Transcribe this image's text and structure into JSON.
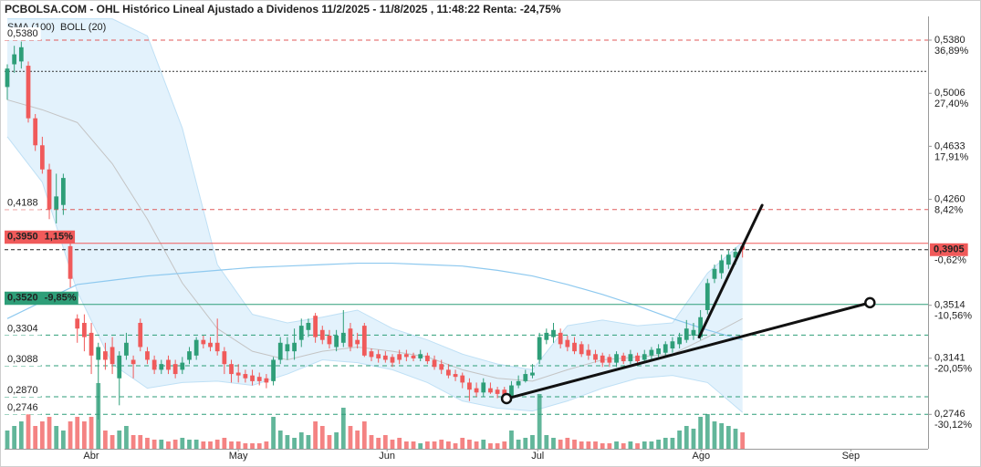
{
  "chart_data": {
    "type": "candlestick",
    "title": "PCBOLSA.COM - OHL Histórico Lineal Ajustado a Dividenos 11/2/2025 - 11/8/2025 , 11:48:22 Renta: -24,75%",
    "up_color": "#2e9e78",
    "down_color": "#f05a5a",
    "xlim": [
      -0.39,
      131.5
    ],
    "ylim": [
      0.2504,
      0.5547
    ],
    "volume_lim": [
      0,
      130
    ],
    "xticks": [
      {
        "value": 11.99,
        "label": "Abr"
      },
      {
        "value": 32.99,
        "label": "May"
      },
      {
        "value": 54.24,
        "label": "Jun"
      },
      {
        "value": 75.75,
        "label": "Jul"
      },
      {
        "value": 99.09,
        "label": "Ago"
      },
      {
        "value": 120.47,
        "label": "Sep"
      }
    ],
    "yticks": [
      {
        "value": 0.538,
        "label": "0,5380",
        "change": {
          "value": 36.89,
          "label": "36,89%"
        }
      },
      {
        "value": 0.5006,
        "label": "0,5006",
        "change": {
          "value": 27.4,
          "label": "27,40%"
        }
      },
      {
        "value": 0.4633,
        "label": "0,4633",
        "change": {
          "value": 17.91,
          "label": "17,91%"
        }
      },
      {
        "value": 0.426,
        "label": "0,4260",
        "change": {
          "value": 8.42,
          "label": "8,42%"
        }
      },
      {
        "value": 0.3514,
        "label": "0,3514",
        "change": {
          "value": -10.56,
          "label": "-10,56%"
        }
      },
      {
        "value": 0.3141,
        "label": "0,3141",
        "change": {
          "value": -20.05,
          "label": "-20,05%"
        }
      },
      {
        "value": 0.2746,
        "label": "0,2746",
        "change": {
          "value": -30.12,
          "label": "-30,12%"
        }
      }
    ],
    "last_price": {
      "value": 0.3905,
      "label": "0,3905",
      "change": {
        "value": -0.62,
        "label": "-0,62%"
      },
      "color": "#f05a5a"
    },
    "levels": [
      {
        "value": 0.538,
        "label": "0,5380",
        "color": "#e05a5a",
        "style": "dashed"
      },
      {
        "value": 0.516,
        "color": "#333333",
        "style": "dotted"
      },
      {
        "value": 0.4188,
        "label": "0,4188",
        "color": "#e05a5a",
        "style": "dashed"
      },
      {
        "value": 0.395,
        "label": "0,3950",
        "change": {
          "value": 1.15,
          "label": "1,15%"
        },
        "color": "#f05a5a",
        "style": "solid",
        "boxed": true
      },
      {
        "value": 0.352,
        "label": "0,3520",
        "change": {
          "value": -9.85,
          "label": "-9,85%"
        },
        "color": "#2e9e78",
        "style": "solid",
        "boxed": true
      },
      {
        "value": 0.3304,
        "label": "0,3304",
        "color": "#2e9e78",
        "style": "dashed"
      },
      {
        "value": 0.3088,
        "label": "0,3088",
        "color": "#2e9e78",
        "style": "dashed"
      },
      {
        "value": 0.287,
        "label": "0,2870",
        "color": "#2e9e78",
        "style": "dashed"
      },
      {
        "value": 0.2746,
        "label": "0,2746",
        "color": "#2e9e78",
        "style": "dashed"
      }
    ],
    "open": [
      0.505,
      0.521,
      0.523,
      0.52,
      0.483,
      0.464,
      0.447,
      0.419,
      0.422,
      0.393,
      0.342,
      0.339,
      0.332,
      0.313,
      0.319,
      0.322,
      0.3,
      0.316,
      0.313,
      0.339,
      0.319,
      0.313,
      0.306,
      0.313,
      0.31,
      0.306,
      0.313,
      0.316,
      0.327,
      0.325,
      0.325,
      0.319,
      0.31,
      0.304,
      0.303,
      0.302,
      0.301,
      0.3,
      0.298,
      0.313,
      0.319,
      0.319,
      0.327,
      0.334,
      0.344,
      0.334,
      0.33,
      0.322,
      0.325,
      0.335,
      0.327,
      0.337,
      0.319,
      0.317,
      0.316,
      0.315,
      0.317,
      0.317,
      0.316,
      0.314,
      0.316,
      0.313,
      0.31,
      0.306,
      0.303,
      0.302,
      0.297,
      0.293,
      0.29,
      0.293,
      0.292,
      0.292,
      0.287,
      0.295,
      0.298,
      0.302,
      0.313,
      0.327,
      0.329,
      0.332,
      0.327,
      0.325,
      0.324,
      0.32,
      0.317,
      0.316,
      0.315,
      0.311,
      0.316,
      0.312,
      0.316,
      0.313,
      0.316,
      0.317,
      0.318,
      0.321,
      0.324,
      0.327,
      0.33,
      0.329,
      0.348,
      0.37,
      0.374,
      0.38,
      0.385,
      0.393
    ],
    "high": [
      0.521,
      0.534,
      0.537,
      0.523,
      0.486,
      0.47,
      0.451,
      0.444,
      0.444,
      0.399,
      0.345,
      0.345,
      0.339,
      0.325,
      0.325,
      0.329,
      0.319,
      0.332,
      0.316,
      0.342,
      0.322,
      0.316,
      0.313,
      0.316,
      0.313,
      0.315,
      0.322,
      0.329,
      0.33,
      0.329,
      0.342,
      0.322,
      0.313,
      0.31,
      0.306,
      0.306,
      0.304,
      0.303,
      0.315,
      0.329,
      0.329,
      0.335,
      0.342,
      0.342,
      0.346,
      0.337,
      0.334,
      0.334,
      0.348,
      0.339,
      0.332,
      0.339,
      0.321,
      0.32,
      0.319,
      0.317,
      0.32,
      0.32,
      0.318,
      0.32,
      0.318,
      0.316,
      0.313,
      0.31,
      0.306,
      0.304,
      0.3,
      0.297,
      0.3,
      0.297,
      0.294,
      0.294,
      0.298,
      0.302,
      0.306,
      0.31,
      0.332,
      0.335,
      0.339,
      0.335,
      0.33,
      0.329,
      0.326,
      0.324,
      0.32,
      0.318,
      0.317,
      0.319,
      0.318,
      0.32,
      0.318,
      0.32,
      0.322,
      0.324,
      0.326,
      0.329,
      0.332,
      0.341,
      0.339,
      0.348,
      0.37,
      0.38,
      0.387,
      0.39,
      0.392,
      0.394
    ],
    "low": [
      0.496,
      0.515,
      0.518,
      0.48,
      0.46,
      0.444,
      0.412,
      0.409,
      0.415,
      0.364,
      0.325,
      0.319,
      0.303,
      0.271,
      0.306,
      0.303,
      0.281,
      0.313,
      0.3,
      0.319,
      0.31,
      0.303,
      0.303,
      0.303,
      0.3,
      0.303,
      0.31,
      0.313,
      0.321,
      0.319,
      0.316,
      0.303,
      0.297,
      0.297,
      0.297,
      0.295,
      0.295,
      0.293,
      0.295,
      0.31,
      0.313,
      0.313,
      0.322,
      0.329,
      0.325,
      0.324,
      0.321,
      0.319,
      0.322,
      0.319,
      0.321,
      0.315,
      0.312,
      0.311,
      0.311,
      0.308,
      0.31,
      0.312,
      0.312,
      0.312,
      0.31,
      0.306,
      0.303,
      0.3,
      0.298,
      0.293,
      0.284,
      0.287,
      0.287,
      0.289,
      0.286,
      0.284,
      0.284,
      0.293,
      0.297,
      0.3,
      0.31,
      0.324,
      0.325,
      0.321,
      0.319,
      0.317,
      0.315,
      0.313,
      0.311,
      0.308,
      0.308,
      0.308,
      0.31,
      0.31,
      0.31,
      0.311,
      0.313,
      0.315,
      0.316,
      0.318,
      0.321,
      0.325,
      0.327,
      0.327,
      0.345,
      0.367,
      0.37,
      0.377,
      0.38,
      0.385
    ],
    "close": [
      0.518,
      0.528,
      0.533,
      0.483,
      0.464,
      0.447,
      0.419,
      0.428,
      0.441,
      0.37,
      0.335,
      0.329,
      0.316,
      0.322,
      0.313,
      0.31,
      0.316,
      0.325,
      0.31,
      0.322,
      0.313,
      0.306,
      0.31,
      0.306,
      0.303,
      0.311,
      0.319,
      0.327,
      0.324,
      0.322,
      0.319,
      0.31,
      0.303,
      0.302,
      0.3,
      0.298,
      0.298,
      0.297,
      0.313,
      0.325,
      0.324,
      0.325,
      0.337,
      0.339,
      0.329,
      0.327,
      0.324,
      0.33,
      0.332,
      0.322,
      0.324,
      0.316,
      0.315,
      0.314,
      0.313,
      0.311,
      0.313,
      0.315,
      0.314,
      0.317,
      0.312,
      0.308,
      0.306,
      0.302,
      0.301,
      0.297,
      0.292,
      0.29,
      0.297,
      0.29,
      0.289,
      0.287,
      0.295,
      0.298,
      0.303,
      0.304,
      0.329,
      0.332,
      0.334,
      0.324,
      0.322,
      0.319,
      0.317,
      0.316,
      0.313,
      0.311,
      0.311,
      0.317,
      0.312,
      0.317,
      0.312,
      0.317,
      0.32,
      0.321,
      0.324,
      0.326,
      0.329,
      0.335,
      0.334,
      0.343,
      0.367,
      0.377,
      0.383,
      0.387,
      0.389,
      0.3905
    ],
    "volume": [
      20,
      25,
      30,
      40,
      25,
      30,
      35,
      25,
      20,
      30,
      35,
      30,
      35,
      72,
      20,
      15,
      20,
      25,
      15,
      15,
      12,
      10,
      10,
      8,
      10,
      12,
      10,
      10,
      8,
      8,
      10,
      12,
      8,
      8,
      6,
      6,
      6,
      8,
      35,
      20,
      15,
      12,
      18,
      15,
      30,
      25,
      15,
      18,
      45,
      25,
      20,
      30,
      15,
      12,
      15,
      10,
      12,
      8,
      8,
      6,
      8,
      8,
      10,
      8,
      6,
      12,
      10,
      8,
      10,
      6,
      6,
      8,
      20,
      10,
      12,
      15,
      60,
      15,
      12,
      10,
      12,
      10,
      8,
      8,
      8,
      6,
      6,
      8,
      6,
      8,
      6,
      8,
      8,
      10,
      12,
      12,
      20,
      25,
      22,
      35,
      38,
      30,
      28,
      25,
      22,
      18
    ],
    "sma": {
      "name": "SMA (100)",
      "color": "#8ec9ef",
      "x": [
        0,
        5,
        10,
        15,
        20,
        25,
        30,
        35,
        40,
        45,
        50,
        55,
        60,
        65,
        70,
        75,
        80,
        85,
        90,
        95,
        100,
        105
      ],
      "values": [
        0.342,
        0.354,
        0.366,
        0.369,
        0.372,
        0.374,
        0.376,
        0.378,
        0.379,
        0.38,
        0.381,
        0.381,
        0.38,
        0.379,
        0.376,
        0.372,
        0.366,
        0.359,
        0.351,
        0.342,
        0.334,
        0.327
      ]
    },
    "bollinger": {
      "name": "BOLL (20)",
      "color": "#c4c4c4",
      "fill": "#dcefFB",
      "x": [
        0,
        5,
        10,
        15,
        20,
        25,
        30,
        35,
        40,
        45,
        50,
        55,
        60,
        65,
        70,
        75,
        80,
        85,
        90,
        95,
        100,
        105
      ],
      "upper": [
        0.553,
        0.553,
        0.553,
        0.553,
        0.541,
        0.476,
        0.38,
        0.345,
        0.339,
        0.343,
        0.348,
        0.335,
        0.327,
        0.317,
        0.31,
        0.306,
        0.337,
        0.341,
        0.337,
        0.339,
        0.374,
        0.396
      ],
      "middle": [
        0.496,
        0.489,
        0.48,
        0.451,
        0.412,
        0.367,
        0.335,
        0.319,
        0.313,
        0.319,
        0.322,
        0.319,
        0.315,
        0.306,
        0.3,
        0.298,
        0.306,
        0.313,
        0.315,
        0.317,
        0.329,
        0.342
      ],
      "lower": [
        0.47,
        0.438,
        0.361,
        0.31,
        0.293,
        0.297,
        0.298,
        0.295,
        0.303,
        0.313,
        0.311,
        0.306,
        0.297,
        0.284,
        0.279,
        0.277,
        0.284,
        0.293,
        0.3,
        0.302,
        0.297,
        0.276
      ]
    },
    "trendlines": [
      {
        "x": [
          71.3,
          123.2
        ],
        "y": [
          0.2857,
          0.3532
        ],
        "endpoints": true
      },
      {
        "x": [
          98.8,
          107.8
        ],
        "y": [
          0.329,
          0.4218
        ],
        "endpoints": false
      }
    ]
  }
}
